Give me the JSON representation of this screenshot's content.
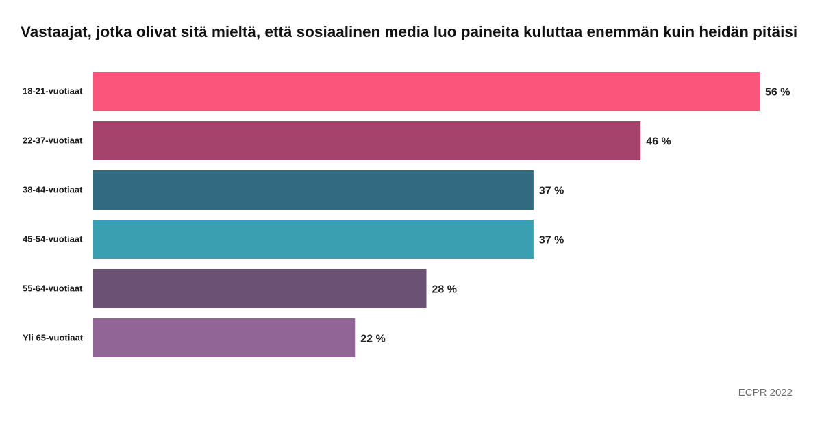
{
  "chart_data": {
    "type": "bar",
    "orientation": "horizontal",
    "title": "Vastaajat, jotka olivat sitä mieltä, että sosiaalinen media luo paineita kuluttaa enemmän kuin heidän pitäisi",
    "categories": [
      "18-21-vuotiaat",
      "22-37-vuotiaat",
      "38-44-vuotiaat",
      "45-54-vuotiaat",
      "55-64-vuotiaat",
      "Yli 65-vuotiaat"
    ],
    "values": [
      56,
      46,
      37,
      37,
      28,
      22
    ],
    "value_labels": [
      "56 %",
      "46 %",
      "37 %",
      "37 %",
      "28 %",
      "22 %"
    ],
    "bar_colors": [
      "#fb557b",
      "#a5436d",
      "#326a81",
      "#3a9fb0",
      "#6b5275",
      "#916596"
    ],
    "xlim": [
      0,
      56
    ],
    "grid": false,
    "legend": "none"
  },
  "source": "ECPR 2022"
}
